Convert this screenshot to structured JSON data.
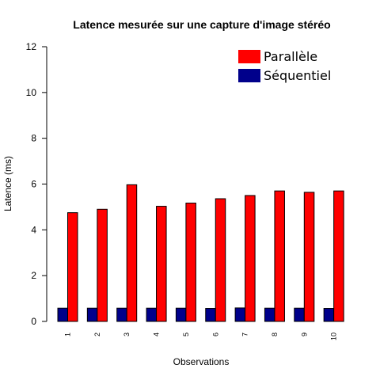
{
  "chart_data": {
    "type": "bar",
    "title": "Latence mesurée sur une capture d'image stéréo",
    "xlabel": "Observations",
    "ylabel": "Latence (ms)",
    "ylim": [
      0,
      12
    ],
    "yticks": [
      0,
      2,
      4,
      6,
      8,
      10,
      12
    ],
    "categories": [
      "1",
      "2",
      "3",
      "4",
      "5",
      "6",
      "7",
      "8",
      "9",
      "10"
    ],
    "grid": false,
    "legend_position": "top-right",
    "series": [
      {
        "name": "Séquentiel",
        "color": "#00008b",
        "values": [
          0.58,
          0.58,
          0.58,
          0.58,
          0.58,
          0.57,
          0.59,
          0.58,
          0.58,
          0.57
        ]
      },
      {
        "name": "Parallèle",
        "color": "#ff0000",
        "values": [
          4.75,
          4.9,
          5.97,
          5.03,
          5.17,
          5.36,
          5.5,
          5.7,
          5.64,
          5.7
        ]
      }
    ],
    "legend_order": [
      "Parallèle",
      "Séquentiel"
    ]
  }
}
